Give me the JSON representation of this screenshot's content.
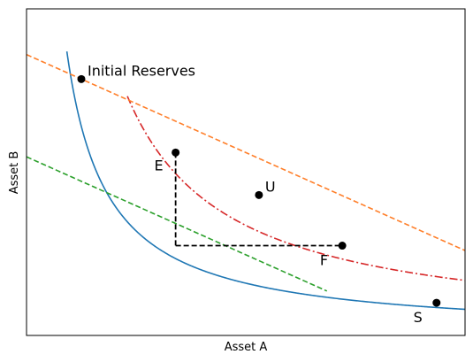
{
  "chart_data": {
    "type": "line",
    "xlabel": "Asset A",
    "ylabel": "Asset B",
    "xlim": [
      0,
      10
    ],
    "ylim": [
      0,
      10
    ],
    "ticks_shown": false,
    "grid": false,
    "series": [
      {
        "id": "invariant",
        "style": "solid",
        "color": "#1f77b4",
        "equation": "y = 8/x",
        "x_range": [
          0.92,
          10
        ]
      },
      {
        "id": "upper-curve",
        "style": "dashdot",
        "color": "#d62728",
        "equation": "y = 16.85/x",
        "x_range": [
          2.3,
          10
        ]
      },
      {
        "id": "price-line",
        "style": "dashed",
        "color": "#ff7f2a",
        "equation": "y = 8.6 - 0.6*x",
        "x_range": [
          0,
          10
        ]
      },
      {
        "id": "tangent-line",
        "style": "dashed",
        "color": "#2ca02c",
        "equation": "y = 5.47 - 0.6*x",
        "x_range": [
          0,
          6.85
        ]
      },
      {
        "id": "path-vertical",
        "style": "dashed",
        "color": "#000000",
        "points": [
          [
            3.4,
            5.6
          ],
          [
            3.4,
            2.75
          ]
        ]
      },
      {
        "id": "path-horizontal",
        "style": "dashed",
        "color": "#000000",
        "points": [
          [
            3.4,
            2.75
          ],
          [
            7.2,
            2.75
          ]
        ]
      }
    ],
    "points": [
      {
        "label": "Initial Reserves",
        "x": 1.25,
        "y": 7.85,
        "label_pos": "right"
      },
      {
        "label": "E",
        "x": 3.4,
        "y": 5.6,
        "label_pos": "left"
      },
      {
        "label": "U",
        "x": 5.3,
        "y": 4.3,
        "label_pos": "right"
      },
      {
        "label": "F",
        "x": 7.2,
        "y": 2.75,
        "label_pos": "below-left"
      },
      {
        "label": "S",
        "x": 9.35,
        "y": 1.0,
        "label_pos": "below-left"
      }
    ]
  }
}
